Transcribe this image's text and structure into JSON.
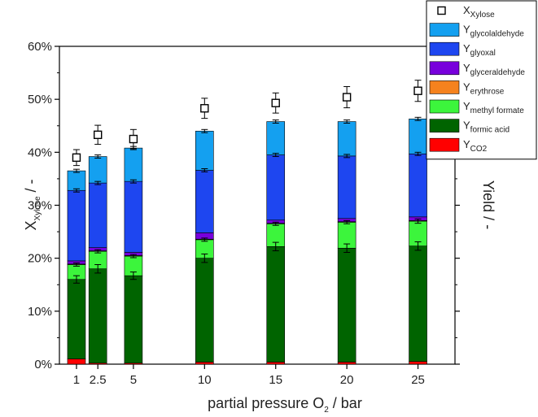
{
  "chart_data": {
    "type": "bar",
    "stacked": true,
    "categories": [
      "1",
      "2.5",
      "5",
      "10",
      "15",
      "20",
      "25"
    ],
    "x": [
      1,
      2.5,
      5,
      10,
      15,
      20,
      25
    ],
    "xlabel": "partial pressure O",
    "xlabel_sub": "2",
    "xlabel_suffix": " / bar",
    "ylabel_left": "X",
    "ylabel_left_sub": "Xylose",
    "ylabel_left_suffix": " / -",
    "ylabel_right": "Yield / -",
    "ylim": [
      0,
      60
    ],
    "yticks": [
      "0%",
      "10%",
      "20%",
      "30%",
      "40%",
      "50%",
      "60%"
    ],
    "ytick_values": [
      0,
      10,
      20,
      30,
      40,
      50,
      60
    ],
    "series": [
      {
        "name": "Y",
        "sub": "CO2",
        "color": "#ff0000",
        "values": [
          1.0,
          0.2,
          0.2,
          0.4,
          0.4,
          0.4,
          0.5
        ]
      },
      {
        "name": "Y",
        "sub": "formic acid",
        "color": "#006400",
        "values": [
          15.0,
          17.8,
          16.5,
          19.6,
          21.8,
          21.5,
          21.8
        ]
      },
      {
        "name": "Y",
        "sub": "methyl formate",
        "color": "#3cf53c",
        "values": [
          2.8,
          3.3,
          3.7,
          3.5,
          4.3,
          4.9,
          4.7
        ]
      },
      {
        "name": "Y",
        "sub": "erythrose",
        "color": "#f5821e",
        "values": [
          0.1,
          0.1,
          0.1,
          0.1,
          0.1,
          0.1,
          0.1
        ]
      },
      {
        "name": "Y",
        "sub": "glyceraldehyde",
        "color": "#7800dc",
        "values": [
          0.6,
          0.6,
          0.6,
          1.2,
          0.6,
          0.6,
          0.7
        ]
      },
      {
        "name": "Y",
        "sub": "glyoxal",
        "color": "#1e46f0",
        "values": [
          13.3,
          12.2,
          13.4,
          11.8,
          12.3,
          11.8,
          11.9
        ]
      },
      {
        "name": "Y",
        "sub": "glycolaldehyde",
        "color": "#14a0f0",
        "values": [
          3.7,
          5.0,
          6.3,
          7.4,
          6.3,
          6.5,
          6.6
        ]
      }
    ],
    "totals_error": [
      0.3,
      0.3,
      0.3,
      0.3,
      0.3,
      0.3,
      0.3
    ],
    "formic_error": [
      0.7,
      0.8,
      0.7,
      0.8,
      0.8,
      0.8,
      0.8
    ],
    "methyl_error": [
      0.3,
      0.3,
      0.3,
      0.3,
      0.3,
      0.3,
      0.4
    ],
    "glyoxal_error": [
      0.3,
      0.3,
      0.3,
      0.3,
      0.3,
      0.3,
      0.3
    ],
    "conversion": {
      "name": "X",
      "sub": "Xylose",
      "values": [
        39.0,
        43.3,
        42.5,
        48.3,
        49.3,
        50.4,
        51.6
      ],
      "error": [
        1.5,
        1.8,
        1.8,
        1.9,
        1.9,
        2.0,
        2.0
      ]
    },
    "legend_position": "top-right, outside plot"
  }
}
